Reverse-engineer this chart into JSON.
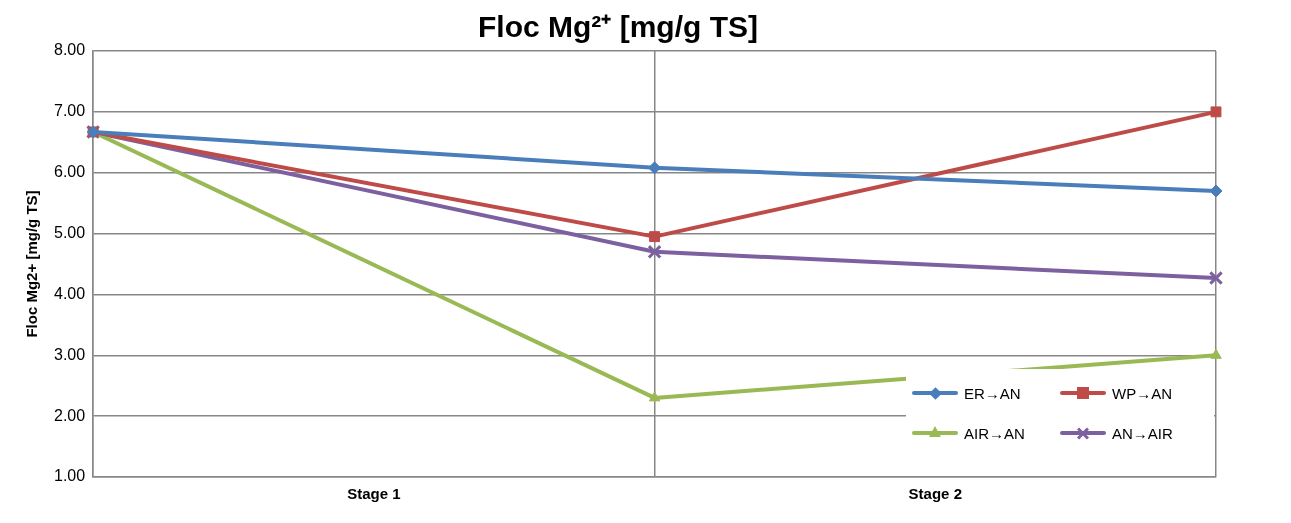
{
  "chart_data": {
    "type": "line",
    "title": "Floc Mg²⁺ [mg/g TS]",
    "ylabel": "Floc Mg2+ [mg/g TS]",
    "categories": [
      null,
      null,
      null
    ],
    "annotations": [
      "Stage 1",
      "Stage 2"
    ],
    "ylim": [
      1,
      8
    ],
    "yticks": [
      {
        "value": 1,
        "label": "1.00"
      },
      {
        "value": 2,
        "label": "2.00"
      },
      {
        "value": 3,
        "label": "3.00"
      },
      {
        "value": 4,
        "label": "4.00"
      },
      {
        "value": 5,
        "label": "5.00"
      },
      {
        "value": 6,
        "label": "6.00"
      },
      {
        "value": 7,
        "label": "7.00"
      },
      {
        "value": 8,
        "label": "8.00"
      }
    ],
    "grid": true,
    "legend": "bottom right",
    "line_style": "solid",
    "series": [
      {
        "name": "ER→AN",
        "color": "#4a7ebb",
        "marker": "diamond",
        "values": [
          6.67,
          6.08,
          5.7
        ]
      },
      {
        "name": "WP→AN",
        "color": "#be4b48",
        "marker": "square",
        "values": [
          6.67,
          4.95,
          7.0
        ]
      },
      {
        "name": "AIR→AN",
        "color": "#98b954",
        "marker": "triangle",
        "values": [
          6.67,
          2.3,
          3.0
        ]
      },
      {
        "name": "AN→AIR",
        "color": "#7d60a0",
        "marker": "cross",
        "values": [
          6.67,
          4.7,
          4.27
        ]
      }
    ]
  }
}
